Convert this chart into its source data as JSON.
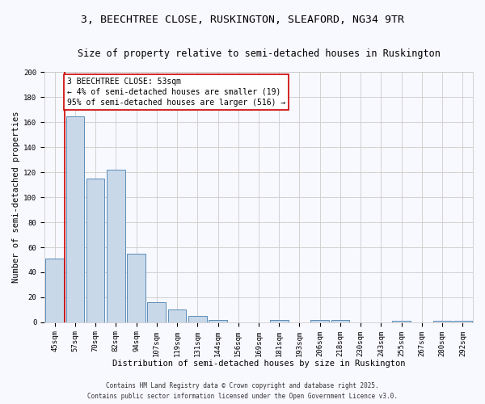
{
  "title1": "3, BEECHTREE CLOSE, RUSKINGTON, SLEAFORD, NG34 9TR",
  "title2": "Size of property relative to semi-detached houses in Ruskington",
  "xlabel": "Distribution of semi-detached houses by size in Ruskington",
  "ylabel": "Number of semi-detached properties",
  "categories": [
    "45sqm",
    "57sqm",
    "70sqm",
    "82sqm",
    "94sqm",
    "107sqm",
    "119sqm",
    "131sqm",
    "144sqm",
    "156sqm",
    "169sqm",
    "181sqm",
    "193sqm",
    "206sqm",
    "218sqm",
    "230sqm",
    "243sqm",
    "255sqm",
    "267sqm",
    "280sqm",
    "292sqm"
  ],
  "values": [
    51,
    165,
    115,
    122,
    55,
    16,
    10,
    5,
    2,
    0,
    0,
    2,
    0,
    2,
    2,
    0,
    0,
    1,
    0,
    1,
    1
  ],
  "bar_color": "#c8d8e8",
  "bar_edge_color": "#5b8db8",
  "annotation_title": "3 BEECHTREE CLOSE: 53sqm",
  "annotation_line1": "← 4% of semi-detached houses are smaller (19)",
  "annotation_line2": "95% of semi-detached houses are larger (516) →",
  "annotation_box_color": "#ffffff",
  "annotation_box_edge": "#cc0000",
  "red_line_color": "#cc0000",
  "ylim": [
    0,
    200
  ],
  "yticks": [
    0,
    20,
    40,
    60,
    80,
    100,
    120,
    140,
    160,
    180,
    200
  ],
  "footer1": "Contains HM Land Registry data © Crown copyright and database right 2025.",
  "footer2": "Contains public sector information licensed under the Open Government Licence v3.0.",
  "bg_color": "#f8f8ff",
  "grid_color": "#cccccc",
  "title1_fontsize": 9.5,
  "title2_fontsize": 8.5,
  "axis_fontsize": 7.5,
  "tick_fontsize": 6.5,
  "annot_fontsize": 7.0,
  "footer_fontsize": 5.5
}
